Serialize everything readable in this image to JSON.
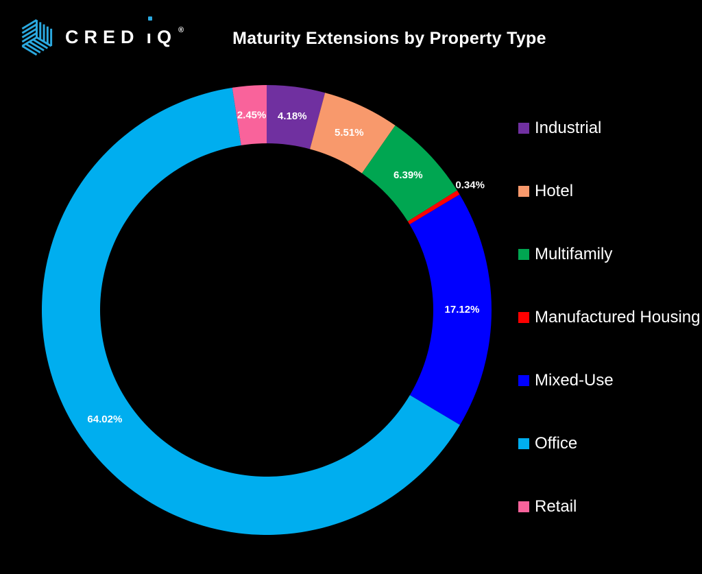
{
  "logo": {
    "cred": "CRED",
    "i": "ı",
    "q": "Q",
    "registered": "®",
    "brand_blue": "#2BA9E0"
  },
  "header": {
    "title": "Maturity Extensions by Property Type"
  },
  "chart_data": {
    "type": "pie",
    "subtype": "donut",
    "title": "Maturity Extensions by Property Type",
    "start_angle_deg": 0,
    "direction": "clockwise",
    "inner_radius_ratio": 0.74,
    "legend_position": "right",
    "background": "#000000",
    "label_color": "#FFFFFF",
    "series": [
      {
        "label": "Industrial",
        "value": 4.18,
        "display": "4.18%",
        "color": "#7030A0"
      },
      {
        "label": "Hotel",
        "value": 5.51,
        "display": "5.51%",
        "color": "#F8996C"
      },
      {
        "label": "Multifamily",
        "value": 6.39,
        "display": "6.39%",
        "color": "#00A651"
      },
      {
        "label": "Manufactured Housing",
        "value": 0.34,
        "display": "0.34%",
        "color": "#FF0000"
      },
      {
        "label": "Mixed-Use",
        "value": 17.12,
        "display": "17.12%",
        "color": "#0000FF"
      },
      {
        "label": "Office",
        "value": 64.02,
        "display": "64.02%",
        "color": "#00AEEF"
      },
      {
        "label": "Retail",
        "value": 2.45,
        "display": "2.45%",
        "color": "#F9639B"
      }
    ]
  }
}
